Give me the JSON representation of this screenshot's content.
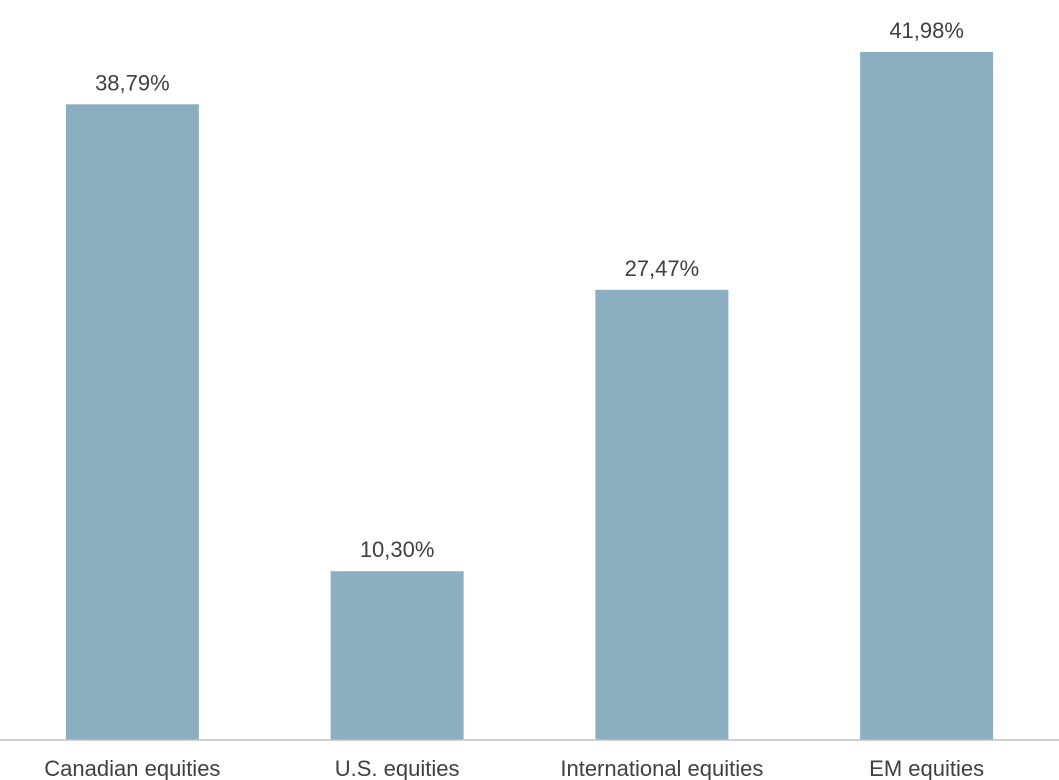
{
  "chart_data": {
    "type": "bar",
    "categories": [
      "Canadian equities",
      "U.S. equities",
      "International equities",
      "EM equities"
    ],
    "values": [
      38.79,
      10.3,
      27.47,
      41.98
    ],
    "data_labels": [
      "38,79%",
      "10,30%",
      "27,47%",
      "41,98%"
    ],
    "title": "",
    "xlabel": "",
    "ylabel": "",
    "ylim": [
      0,
      42.5
    ],
    "grid": false,
    "legend": "none",
    "bar_color": "#8BAFC0",
    "axis_color": "#BFBFBF",
    "text_color": "#404040"
  }
}
